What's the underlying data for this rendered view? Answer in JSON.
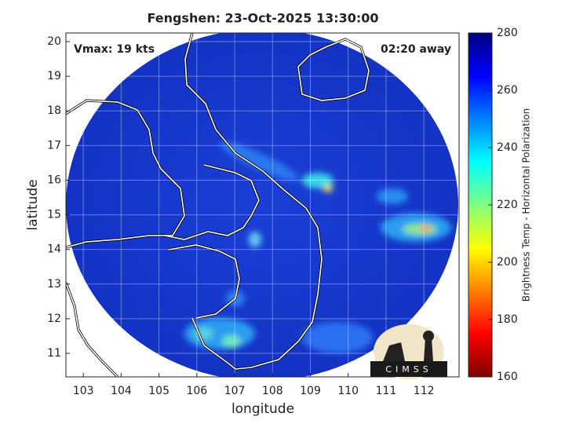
{
  "chart_data": {
    "type": "map",
    "title": "Fengshen: 23-Oct-2025 13:30:00",
    "xlabel": "longitude",
    "ylabel": "latitude",
    "xlim": [
      102.54,
      112.93
    ],
    "ylim": [
      10.32,
      20.25
    ],
    "xticks": [
      103,
      104,
      105,
      106,
      107,
      108,
      109,
      110,
      111,
      112
    ],
    "yticks": [
      11,
      12,
      13,
      14,
      15,
      16,
      17,
      18,
      19,
      20
    ],
    "grid": true,
    "annotations": [
      "Vmax: 19 kts",
      "02:20 away"
    ],
    "colorbar": {
      "label": "Brightness Temp - Horizontal Polarization",
      "lim": [
        160,
        280
      ],
      "ticks": [
        160,
        180,
        200,
        220,
        240,
        260,
        280
      ]
    },
    "logo": "CIMSS"
  }
}
